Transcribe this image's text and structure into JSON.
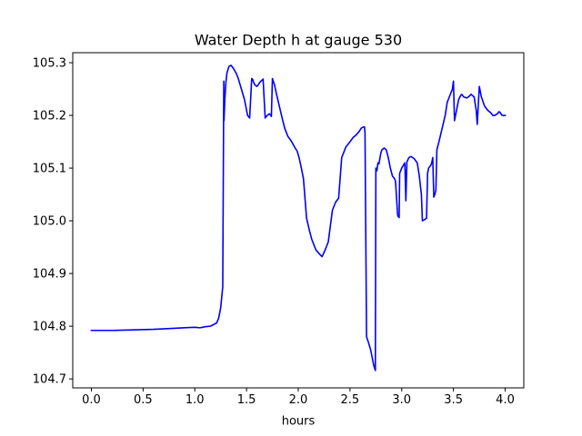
{
  "chart_data": {
    "type": "line",
    "title": "Water Depth h at gauge 530",
    "xlabel": "hours",
    "ylabel": "",
    "xlim": [
      -0.18,
      4.18
    ],
    "ylim": [
      104.683,
      105.319
    ],
    "x_ticks": [
      0.0,
      0.5,
      1.0,
      1.5,
      2.0,
      2.5,
      3.0,
      3.5,
      4.0
    ],
    "x_tick_labels": [
      "0.0",
      "0.5",
      "1.0",
      "1.5",
      "2.0",
      "2.5",
      "3.0",
      "3.5",
      "4.0"
    ],
    "y_ticks": [
      104.7,
      104.8,
      104.9,
      105.0,
      105.1,
      105.2,
      105.3
    ],
    "y_tick_labels": [
      "104.7",
      "104.8",
      "104.9",
      "105.0",
      "105.1",
      "105.2",
      "105.3"
    ],
    "grid": false,
    "legend": "none",
    "series": [
      {
        "color": "#0000ff",
        "x": [
          0.0,
          0.2,
          0.4,
          0.6,
          0.8,
          0.9,
          1.0,
          1.05,
          1.1,
          1.15,
          1.18,
          1.21,
          1.23,
          1.25,
          1.27,
          1.28,
          1.282,
          1.29,
          1.3,
          1.31,
          1.33,
          1.35,
          1.37,
          1.4,
          1.42,
          1.45,
          1.48,
          1.5,
          1.51,
          1.53,
          1.55,
          1.56,
          1.57,
          1.58,
          1.6,
          1.62,
          1.63,
          1.64,
          1.66,
          1.68,
          1.7,
          1.72,
          1.73,
          1.74,
          1.75,
          1.77,
          1.79,
          1.82,
          1.85,
          1.87,
          1.88,
          1.9,
          1.93,
          1.95,
          1.97,
          1.99,
          2.0,
          2.01,
          2.03,
          2.05,
          2.08,
          2.11,
          2.13,
          2.15,
          2.17,
          2.2,
          2.23,
          2.26,
          2.29,
          2.32,
          2.33,
          2.36,
          2.39,
          2.42,
          2.44,
          2.46,
          2.48,
          2.5,
          2.53,
          2.56,
          2.59,
          2.61,
          2.63,
          2.64,
          2.645,
          2.66,
          2.68,
          2.7,
          2.72,
          2.73,
          2.745,
          2.75,
          2.76,
          2.77,
          2.78,
          2.79,
          2.8,
          2.81,
          2.83,
          2.85,
          2.87,
          2.89,
          2.91,
          2.93,
          2.94,
          2.96,
          2.965,
          2.97,
          2.975,
          2.98,
          3.0,
          3.03,
          3.04,
          3.05,
          3.07,
          3.09,
          3.12,
          3.15,
          3.17,
          3.19,
          3.2,
          3.22,
          3.24,
          3.25,
          3.26,
          3.28,
          3.29,
          3.3,
          3.31,
          3.32,
          3.33,
          3.34,
          3.36,
          3.39,
          3.42,
          3.44,
          3.46,
          3.49,
          3.5,
          3.51,
          3.53,
          3.55,
          3.57,
          3.58,
          3.6,
          3.63,
          3.65,
          3.67,
          3.7,
          3.72,
          3.73,
          3.75,
          3.77,
          3.8,
          3.83,
          3.86,
          3.88,
          3.9,
          3.93,
          3.94,
          3.95,
          3.97,
          4.0
        ],
        "y": [
          104.792,
          104.792,
          104.793,
          104.794,
          104.796,
          104.797,
          104.798,
          104.797,
          104.799,
          104.8,
          104.803,
          104.806,
          104.815,
          104.835,
          104.875,
          105.265,
          105.19,
          105.23,
          105.262,
          105.28,
          105.293,
          105.295,
          105.29,
          105.28,
          105.27,
          105.25,
          105.23,
          105.21,
          105.2,
          105.195,
          105.27,
          105.268,
          105.262,
          105.258,
          105.255,
          105.26,
          105.263,
          105.265,
          105.269,
          105.195,
          105.2,
          105.203,
          105.201,
          105.198,
          105.27,
          105.258,
          105.24,
          105.215,
          105.19,
          105.175,
          105.17,
          105.16,
          105.152,
          105.145,
          105.138,
          105.132,
          105.125,
          105.118,
          105.1,
          105.08,
          105.005,
          104.98,
          104.965,
          104.955,
          104.945,
          104.938,
          104.932,
          104.945,
          104.96,
          105.005,
          105.02,
          105.035,
          105.043,
          105.12,
          105.13,
          105.14,
          105.145,
          105.15,
          105.158,
          105.163,
          105.17,
          105.176,
          105.178,
          105.178,
          105.168,
          104.78,
          104.768,
          104.755,
          104.735,
          104.725,
          104.716,
          105.1,
          105.095,
          105.11,
          105.108,
          105.12,
          105.13,
          105.135,
          105.138,
          105.135,
          105.12,
          105.1,
          105.085,
          105.08,
          105.075,
          105.012,
          105.008,
          105.01,
          105.006,
          105.09,
          105.1,
          105.11,
          105.038,
          105.112,
          105.12,
          105.122,
          105.118,
          105.11,
          105.085,
          105.05,
          105.0,
          105.002,
          105.005,
          105.09,
          105.1,
          105.105,
          105.11,
          105.12,
          105.045,
          105.05,
          105.058,
          105.135,
          105.15,
          105.175,
          105.2,
          105.225,
          105.235,
          105.25,
          105.265,
          105.19,
          105.21,
          105.23,
          105.238,
          105.24,
          105.235,
          105.233,
          105.236,
          105.24,
          105.235,
          105.21,
          105.183,
          105.255,
          105.235,
          105.218,
          105.21,
          105.205,
          105.2,
          105.2,
          105.204,
          105.207,
          105.206,
          105.2,
          105.2
        ]
      }
    ]
  }
}
